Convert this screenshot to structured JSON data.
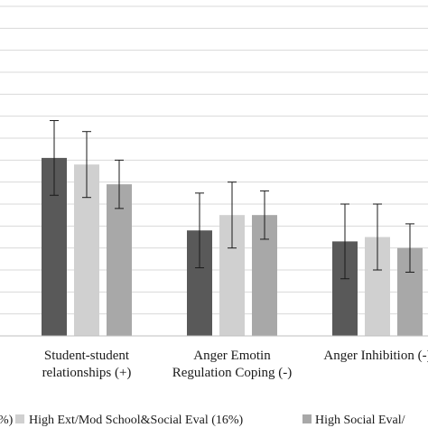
{
  "chart_data": {
    "type": "bar",
    "title": "",
    "xlabel": "",
    "ylabel": "",
    "grid": true,
    "ylim": [
      0,
      15
    ],
    "categories": [
      [
        "Student-student",
        "relationships (+)"
      ],
      [
        "Anger Emotin",
        "Regulation Coping (-)"
      ],
      [
        "Anger Inhibition (-)"
      ]
    ],
    "series": [
      {
        "name": "",
        "legend_label": "%)",
        "color": "#595959",
        "values": [
          8.1,
          4.8,
          4.3
        ],
        "error": [
          1.7,
          1.7,
          1.7
        ]
      },
      {
        "name": "High Ext/Mod School&Social Eval (16%)",
        "legend_label": "High Ext/Mod School&Social Eval (16%)",
        "color": "#d0d0d0",
        "values": [
          7.8,
          5.5,
          4.5
        ],
        "error": [
          1.5,
          1.5,
          1.5
        ]
      },
      {
        "name": "High Social Eval/",
        "legend_label": "High Social Eval/",
        "color": "#a8a8a8",
        "values": [
          6.9,
          5.5,
          4.0
        ],
        "error": [
          1.1,
          1.1,
          1.1
        ]
      }
    ],
    "legend": "bottom"
  }
}
